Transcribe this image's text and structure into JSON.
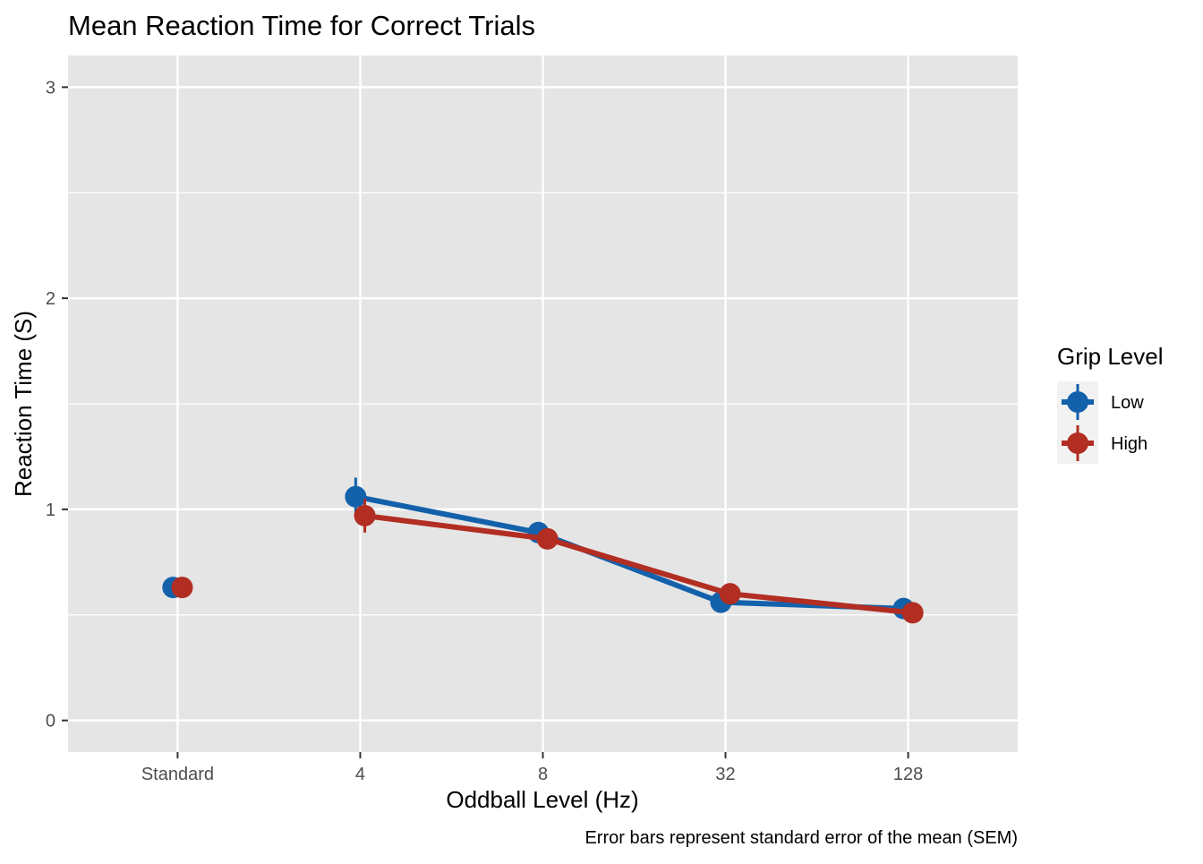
{
  "chart_data": {
    "type": "line",
    "title": "Mean Reaction Time for Correct Trials",
    "xlabel": "Oddball Level (Hz)",
    "ylabel": "Reaction Time (S)",
    "caption": "Error bars represent standard error of the mean (SEM)",
    "categories": [
      "Standard",
      "4",
      "8",
      "32",
      "128"
    ],
    "ylim": [
      -0.15,
      3.15
    ],
    "yticks": [
      0,
      1,
      2,
      3
    ],
    "yticklabels": [
      "0",
      "1",
      "2",
      "3"
    ],
    "grid": true,
    "legend": {
      "title": "Grip Level",
      "position": "right"
    },
    "series": [
      {
        "name": "Low",
        "color": "#1361ab",
        "values": [
          0.63,
          1.06,
          0.89,
          0.56,
          0.53
        ],
        "sem": [
          0.01,
          0.09,
          0.02,
          0.01,
          0.01
        ],
        "connect_from_index": 1
      },
      {
        "name": "High",
        "color": "#b22d22",
        "values": [
          0.63,
          0.97,
          0.86,
          0.6,
          0.51
        ],
        "sem": [
          0.01,
          0.08,
          0.02,
          0.01,
          0.01
        ],
        "connect_from_index": 1
      }
    ]
  }
}
